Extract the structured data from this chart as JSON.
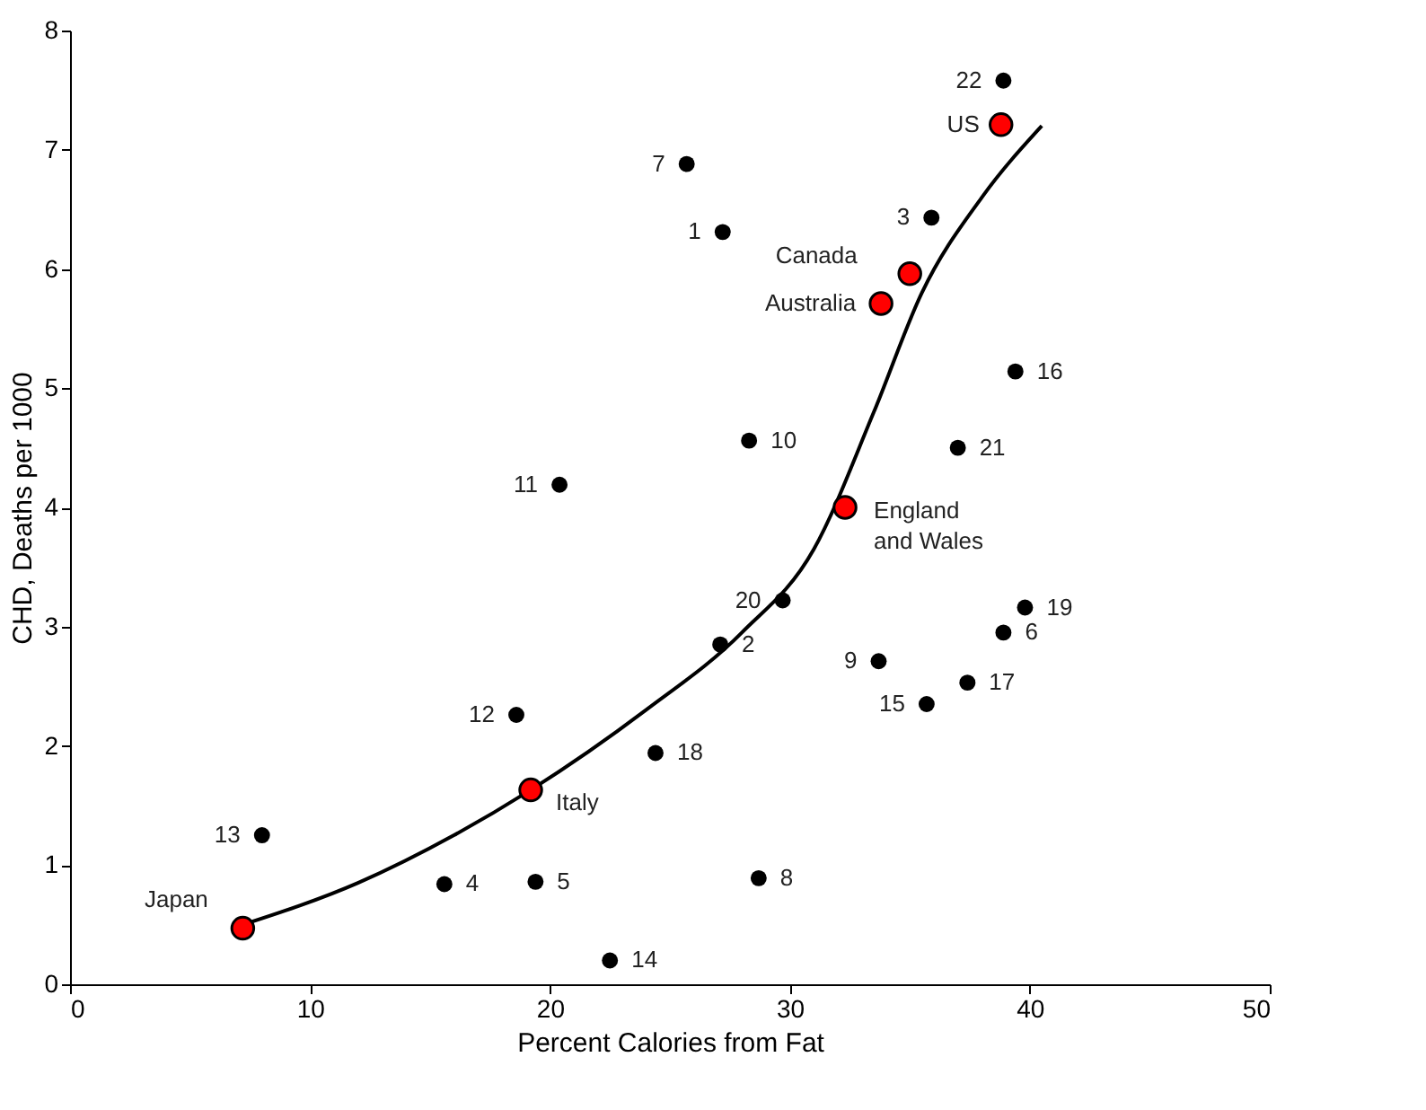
{
  "chart_data": {
    "type": "scatter",
    "xlabel": "Percent Calories from Fat",
    "ylabel": "CHD, Deaths per 1000",
    "xlim": [
      0,
      50
    ],
    "xticks": [
      0,
      10,
      20,
      30,
      40,
      50
    ],
    "ylim": [
      0,
      8
    ],
    "yticks": [
      0,
      1,
      2,
      3,
      4,
      5,
      6,
      7,
      8
    ],
    "grid": false,
    "series": [
      {
        "type": "line",
        "marker": "none",
        "color": "#000000",
        "x": [
          7.2,
          12,
          16,
          19.2,
          24,
          28,
          31,
          33.5,
          35.5,
          38,
          40.5
        ],
        "values": [
          0.5,
          0.85,
          1.25,
          1.63,
          2.3,
          2.95,
          3.65,
          4.8,
          5.8,
          6.6,
          7.2
        ]
      },
      {
        "marker": "circle",
        "color": "#000000",
        "x": [
          38.9,
          25.7,
          27.2,
          35.9,
          39.4,
          28.3,
          37.0,
          20.4,
          29.7,
          39.8,
          38.9,
          27.1,
          33.7,
          37.4,
          35.7,
          18.6,
          24.4,
          8.0,
          15.6,
          19.4,
          28.7,
          22.5
        ],
        "values": [
          7.58,
          6.88,
          6.31,
          6.43,
          5.14,
          4.56,
          4.5,
          4.19,
          3.22,
          3.16,
          2.95,
          2.85,
          2.71,
          2.53,
          2.35,
          2.26,
          1.94,
          1.25,
          0.84,
          0.86,
          0.89,
          0.2
        ]
      },
      {
        "marker": "circle",
        "color": "#ff0000",
        "x": [
          7.2,
          19.2,
          32.3,
          33.8,
          35.0,
          38.8
        ],
        "values": [
          0.47,
          1.63,
          4.0,
          5.71,
          5.96,
          7.21
        ]
      }
    ],
    "annotations": [
      {
        "text": "22",
        "x": 38.9,
        "y": 7.58
      },
      {
        "text": "US",
        "x": 38.8,
        "y": 7.21
      },
      {
        "text": "7",
        "x": 25.7,
        "y": 6.88
      },
      {
        "text": "1",
        "x": 27.2,
        "y": 6.31
      },
      {
        "text": "3",
        "x": 35.9,
        "y": 6.43
      },
      {
        "text": "Canada",
        "x": 35.0,
        "y": 5.96
      },
      {
        "text": "Australia",
        "x": 33.8,
        "y": 5.71
      },
      {
        "text": "16",
        "x": 39.4,
        "y": 5.14
      },
      {
        "text": "10",
        "x": 28.3,
        "y": 4.56
      },
      {
        "text": "21",
        "x": 37.0,
        "y": 4.5
      },
      {
        "text": "11",
        "x": 20.4,
        "y": 4.19
      },
      {
        "text": "England\nand Wales",
        "x": 32.3,
        "y": 4.0
      },
      {
        "text": "20",
        "x": 29.7,
        "y": 3.22
      },
      {
        "text": "19",
        "x": 39.8,
        "y": 3.16
      },
      {
        "text": "6",
        "x": 38.9,
        "y": 2.95
      },
      {
        "text": "2",
        "x": 27.1,
        "y": 2.85
      },
      {
        "text": "9",
        "x": 33.7,
        "y": 2.71
      },
      {
        "text": "17",
        "x": 37.4,
        "y": 2.53
      },
      {
        "text": "15",
        "x": 35.7,
        "y": 2.35
      },
      {
        "text": "12",
        "x": 18.6,
        "y": 2.26
      },
      {
        "text": "18",
        "x": 24.4,
        "y": 1.94
      },
      {
        "text": "13",
        "x": 8.0,
        "y": 1.25
      },
      {
        "text": "Italy",
        "x": 19.2,
        "y": 1.63
      },
      {
        "text": "4",
        "x": 15.6,
        "y": 0.84
      },
      {
        "text": "5",
        "x": 19.4,
        "y": 0.86
      },
      {
        "text": "8",
        "x": 28.7,
        "y": 0.89
      },
      {
        "text": "Japan",
        "x": 7.2,
        "y": 0.47
      },
      {
        "text": "14",
        "x": 22.5,
        "y": 0.2
      }
    ]
  }
}
